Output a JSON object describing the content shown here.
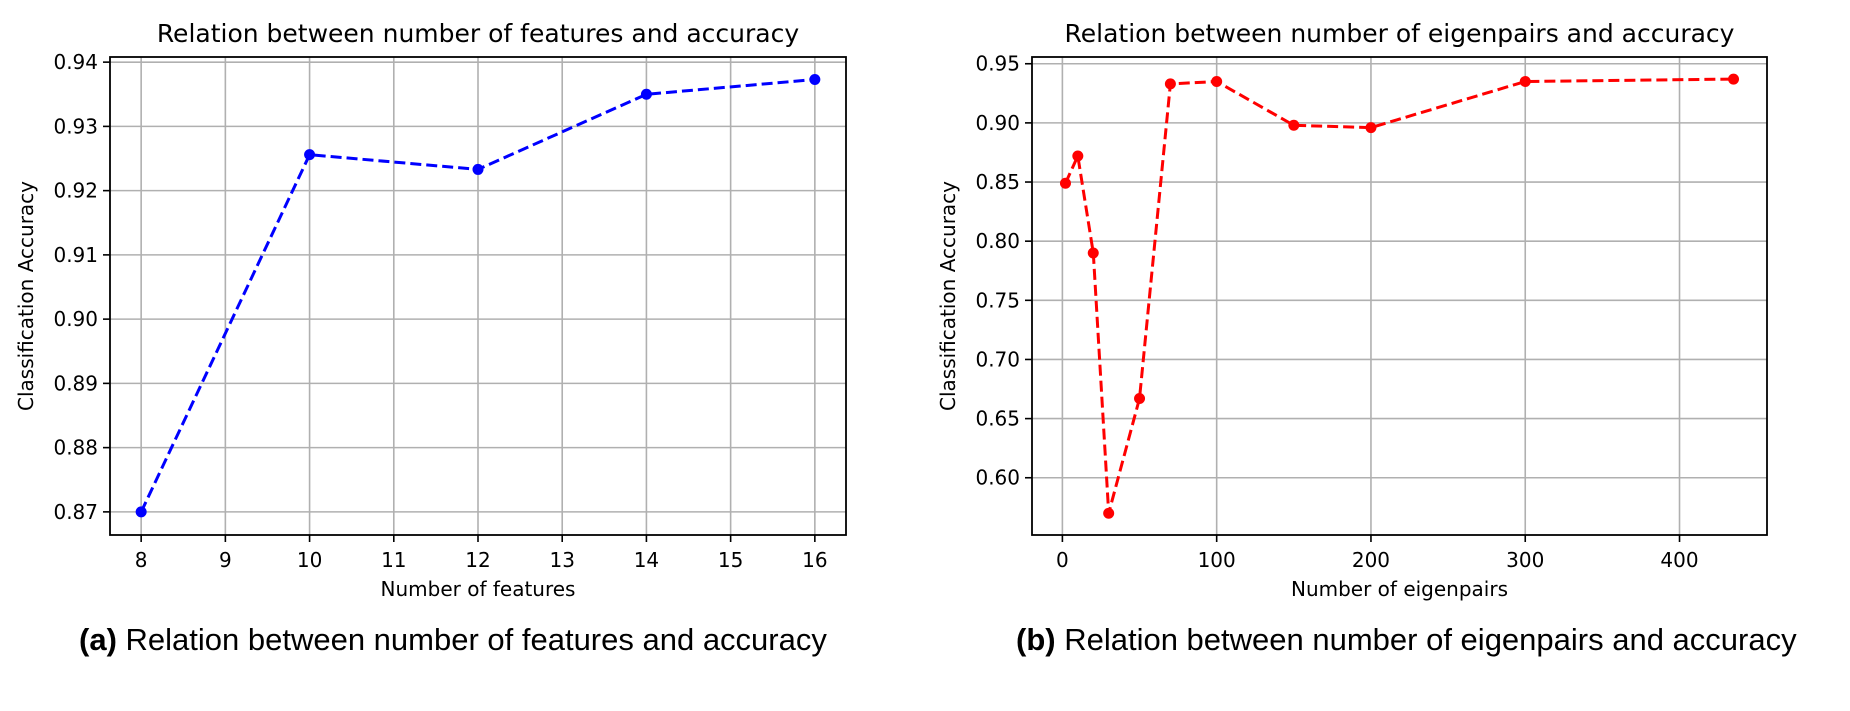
{
  "chart_data": [
    {
      "type": "line",
      "title": "Relation between number of features and accuracy",
      "xlabel": "Number of features",
      "ylabel": "Classification Accuracy",
      "x": [
        8,
        10,
        12,
        14,
        16
      ],
      "series": [
        {
          "values": [
            0.87,
            0.9256,
            0.9233,
            0.935,
            0.9373
          ],
          "color": "#0000ff",
          "linestyle": "dashed",
          "marker": "circle"
        }
      ],
      "xlim": [
        7.63,
        16.37
      ],
      "ylim": [
        0.8664,
        0.9408
      ],
      "xticks": [
        8,
        9,
        10,
        11,
        12,
        13,
        14,
        15,
        16
      ],
      "xtick_labels": [
        "8",
        "9",
        "10",
        "11",
        "12",
        "13",
        "14",
        "15",
        "16"
      ],
      "yticks": [
        0.87,
        0.88,
        0.89,
        0.9,
        0.91,
        0.92,
        0.93,
        0.94
      ],
      "ytick_labels": [
        "0.87",
        "0.88",
        "0.89",
        "0.90",
        "0.91",
        "0.92",
        "0.93",
        "0.94"
      ],
      "grid": true
    },
    {
      "type": "line",
      "title": "Relation between number of eigenpairs and accuracy",
      "xlabel": "Number of eigenpairs",
      "ylabel": "Classification Accuracy",
      "x": [
        2,
        10,
        20,
        30,
        50,
        70,
        100,
        150,
        200,
        300,
        435
      ],
      "series": [
        {
          "values": [
            0.849,
            0.872,
            0.79,
            0.57,
            0.667,
            0.933,
            0.935,
            0.898,
            0.896,
            0.935,
            0.937
          ],
          "color": "#ff0000",
          "linestyle": "dashed",
          "marker": "circle"
        }
      ],
      "xlim": [
        -19.7,
        456.7
      ],
      "ylim": [
        0.5516,
        0.9557
      ],
      "xticks": [
        0,
        100,
        200,
        300,
        400
      ],
      "xtick_labels": [
        "0",
        "100",
        "200",
        "300",
        "400"
      ],
      "yticks": [
        0.6,
        0.65,
        0.7,
        0.75,
        0.8,
        0.85,
        0.9,
        0.95
      ],
      "ytick_labels": [
        "0.60",
        "0.65",
        "0.70",
        "0.75",
        "0.80",
        "0.85",
        "0.90",
        "0.95"
      ],
      "grid": true
    }
  ],
  "captions": [
    {
      "label": "(a)",
      "text": " Relation between number of features and accuracy"
    },
    {
      "label": "(b)",
      "text": " Relation between number of eigenpairs and accuracy"
    }
  ]
}
